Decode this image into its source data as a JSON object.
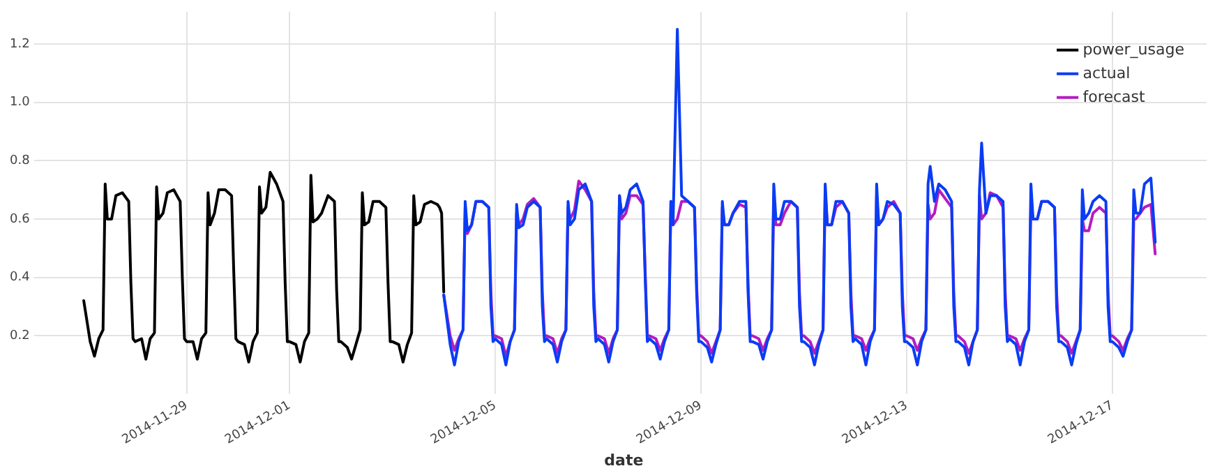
{
  "chart_data": {
    "type": "line",
    "xlabel": "date",
    "legend": "top right",
    "grid": true,
    "line_style": "solid",
    "marker": "none",
    "xlim": [
      "2014-11-26T04:00",
      "2014-12-18T20:00"
    ],
    "xticks": [
      "2014-11-29",
      "2014-12-01",
      "2014-12-05",
      "2014-12-09",
      "2014-12-13",
      "2014-12-17"
    ],
    "ylim": [
      0.02,
      1.31
    ],
    "yticks": [
      0.2,
      0.4,
      0.6,
      0.8,
      {
        "value": 1,
        "label": "1.0"
      },
      1.2
    ],
    "x": [
      "2014-12-04T00:00",
      "2014-12-04T03:00",
      "2014-12-04T05:00",
      "2014-12-04T07:00",
      "2014-12-04T09:00",
      "2014-12-04T10:00",
      "2014-12-04T11:00",
      "2014-12-04T13:00",
      "2014-12-04T15:00",
      "2014-12-04T18:00",
      "2014-12-04T21:00",
      "2014-12-04T22:00",
      "2014-12-04T23:00",
      "2014-12-05T00:00",
      "2014-12-05T03:00",
      "2014-12-05T05:00",
      "2014-12-05T07:00",
      "2014-12-05T09:00",
      "2014-12-05T10:00",
      "2014-12-05T11:00",
      "2014-12-05T13:00",
      "2014-12-05T15:00",
      "2014-12-05T18:00",
      "2014-12-05T21:00",
      "2014-12-05T22:00",
      "2014-12-05T23:00",
      "2014-12-06T00:00",
      "2014-12-06T03:00",
      "2014-12-06T05:00",
      "2014-12-06T07:00",
      "2014-12-06T09:00",
      "2014-12-06T10:00",
      "2014-12-06T11:00",
      "2014-12-06T13:00",
      "2014-12-06T15:00",
      "2014-12-06T18:00",
      "2014-12-06T21:00",
      "2014-12-06T22:00",
      "2014-12-06T23:00",
      "2014-12-07T00:00",
      "2014-12-07T03:00",
      "2014-12-07T05:00",
      "2014-12-07T07:00",
      "2014-12-07T09:00",
      "2014-12-07T10:00",
      "2014-12-07T11:00",
      "2014-12-07T13:00",
      "2014-12-07T15:00",
      "2014-12-07T18:00",
      "2014-12-07T21:00",
      "2014-12-07T22:00",
      "2014-12-07T23:00",
      "2014-12-08T00:00",
      "2014-12-08T03:00",
      "2014-12-08T05:00",
      "2014-12-08T07:00",
      "2014-12-08T09:00",
      "2014-12-08T10:00",
      "2014-12-08T11:00",
      "2014-12-08T13:00",
      "2014-12-08T15:00",
      "2014-12-08T18:00",
      "2014-12-08T21:00",
      "2014-12-08T22:00",
      "2014-12-08T23:00",
      "2014-12-09T00:00",
      "2014-12-09T03:00",
      "2014-12-09T05:00",
      "2014-12-09T07:00",
      "2014-12-09T09:00",
      "2014-12-09T10:00",
      "2014-12-09T11:00",
      "2014-12-09T13:00",
      "2014-12-09T15:00",
      "2014-12-09T18:00",
      "2014-12-09T21:00",
      "2014-12-09T22:00",
      "2014-12-09T23:00",
      "2014-12-10T00:00",
      "2014-12-10T03:00",
      "2014-12-10T05:00",
      "2014-12-10T07:00",
      "2014-12-10T09:00",
      "2014-12-10T10:00",
      "2014-12-10T11:00",
      "2014-12-10T13:00",
      "2014-12-10T15:00",
      "2014-12-10T18:00",
      "2014-12-10T21:00",
      "2014-12-10T22:00",
      "2014-12-10T23:00",
      "2014-12-11T00:00",
      "2014-12-11T03:00",
      "2014-12-11T05:00",
      "2014-12-11T07:00",
      "2014-12-11T09:00",
      "2014-12-11T10:00",
      "2014-12-11T11:00",
      "2014-12-11T13:00",
      "2014-12-11T15:00",
      "2014-12-11T18:00",
      "2014-12-11T21:00",
      "2014-12-11T22:00",
      "2014-12-11T23:00",
      "2014-12-12T00:00",
      "2014-12-12T03:00",
      "2014-12-12T05:00",
      "2014-12-12T07:00",
      "2014-12-12T09:00",
      "2014-12-12T10:00",
      "2014-12-12T11:00",
      "2014-12-12T13:00",
      "2014-12-12T15:00",
      "2014-12-12T18:00",
      "2014-12-12T21:00",
      "2014-12-12T22:00",
      "2014-12-12T23:00",
      "2014-12-13T00:00",
      "2014-12-13T03:00",
      "2014-12-13T05:00",
      "2014-12-13T07:00",
      "2014-12-13T09:00",
      "2014-12-13T10:00",
      "2014-12-13T11:00",
      "2014-12-13T13:00",
      "2014-12-13T15:00",
      "2014-12-13T18:00",
      "2014-12-13T21:00",
      "2014-12-13T22:00",
      "2014-12-13T23:00",
      "2014-12-14T00:00",
      "2014-12-14T03:00",
      "2014-12-14T05:00",
      "2014-12-14T07:00",
      "2014-12-14T09:00",
      "2014-12-14T10:00",
      "2014-12-14T11:00",
      "2014-12-14T13:00",
      "2014-12-14T15:00",
      "2014-12-14T18:00",
      "2014-12-14T21:00",
      "2014-12-14T22:00",
      "2014-12-14T23:00",
      "2014-12-15T00:00",
      "2014-12-15T03:00",
      "2014-12-15T05:00",
      "2014-12-15T07:00",
      "2014-12-15T09:00",
      "2014-12-15T10:00",
      "2014-12-15T11:00",
      "2014-12-15T13:00",
      "2014-12-15T15:00",
      "2014-12-15T18:00",
      "2014-12-15T21:00",
      "2014-12-15T22:00",
      "2014-12-15T23:00",
      "2014-12-16T00:00",
      "2014-12-16T03:00",
      "2014-12-16T05:00",
      "2014-12-16T07:00",
      "2014-12-16T09:00",
      "2014-12-16T10:00",
      "2014-12-16T11:00",
      "2014-12-16T13:00",
      "2014-12-16T15:00",
      "2014-12-16T18:00",
      "2014-12-16T21:00",
      "2014-12-16T22:00",
      "2014-12-16T23:00",
      "2014-12-17T00:00",
      "2014-12-17T03:00",
      "2014-12-17T05:00",
      "2014-12-17T07:00",
      "2014-12-17T09:00",
      "2014-12-17T10:00",
      "2014-12-17T11:00",
      "2014-12-17T13:00",
      "2014-12-17T15:00",
      "2014-12-17T18:00",
      "2014-12-17T20:00"
    ],
    "series": [
      {
        "name": "power_usage",
        "color": "#000000",
        "x": [
          "2014-11-27T00:00",
          "2014-11-27T03:00",
          "2014-11-27T05:00",
          "2014-11-27T07:00",
          "2014-11-27T09:00",
          "2014-11-27T10:00",
          "2014-11-27T11:00",
          "2014-11-27T13:00",
          "2014-11-27T15:00",
          "2014-11-27T18:00",
          "2014-11-27T21:00",
          "2014-11-27T22:00",
          "2014-11-27T23:00",
          "2014-11-28T00:00",
          "2014-11-28T03:00",
          "2014-11-28T05:00",
          "2014-11-28T07:00",
          "2014-11-28T09:00",
          "2014-11-28T10:00",
          "2014-11-28T11:00",
          "2014-11-28T13:00",
          "2014-11-28T15:00",
          "2014-11-28T18:00",
          "2014-11-28T21:00",
          "2014-11-28T22:00",
          "2014-11-28T23:00",
          "2014-11-29T00:00",
          "2014-11-29T03:00",
          "2014-11-29T05:00",
          "2014-11-29T07:00",
          "2014-11-29T09:00",
          "2014-11-29T10:00",
          "2014-11-29T11:00",
          "2014-11-29T13:00",
          "2014-11-29T15:00",
          "2014-11-29T18:00",
          "2014-11-29T21:00",
          "2014-11-29T22:00",
          "2014-11-29T23:00",
          "2014-11-30T00:00",
          "2014-11-30T03:00",
          "2014-11-30T05:00",
          "2014-11-30T07:00",
          "2014-11-30T09:00",
          "2014-11-30T10:00",
          "2014-11-30T11:00",
          "2014-11-30T13:00",
          "2014-11-30T15:00",
          "2014-11-30T18:00",
          "2014-11-30T21:00",
          "2014-11-30T22:00",
          "2014-11-30T23:00",
          "2014-12-01T00:00",
          "2014-12-01T03:00",
          "2014-12-01T05:00",
          "2014-12-01T07:00",
          "2014-12-01T09:00",
          "2014-12-01T10:00",
          "2014-12-01T11:00",
          "2014-12-01T13:00",
          "2014-12-01T15:00",
          "2014-12-01T18:00",
          "2014-12-01T21:00",
          "2014-12-01T22:00",
          "2014-12-01T23:00",
          "2014-12-02T00:00",
          "2014-12-02T03:00",
          "2014-12-02T05:00",
          "2014-12-02T07:00",
          "2014-12-02T09:00",
          "2014-12-02T10:00",
          "2014-12-02T11:00",
          "2014-12-02T13:00",
          "2014-12-02T15:00",
          "2014-12-02T18:00",
          "2014-12-02T21:00",
          "2014-12-02T22:00",
          "2014-12-02T23:00",
          "2014-12-03T00:00",
          "2014-12-03T03:00",
          "2014-12-03T05:00",
          "2014-12-03T07:00",
          "2014-12-03T09:00",
          "2014-12-03T10:00",
          "2014-12-03T11:00",
          "2014-12-03T13:00",
          "2014-12-03T15:00",
          "2014-12-03T18:00",
          "2014-12-03T21:00",
          "2014-12-03T22:00",
          "2014-12-03T23:00",
          "2014-12-04T00:00"
        ],
        "values": [
          0.32,
          0.18,
          0.13,
          0.19,
          0.22,
          0.72,
          0.6,
          0.6,
          0.68,
          0.69,
          0.66,
          0.38,
          0.19,
          0.18,
          0.19,
          0.12,
          0.19,
          0.21,
          0.71,
          0.6,
          0.62,
          0.69,
          0.7,
          0.66,
          0.4,
          0.19,
          0.18,
          0.18,
          0.12,
          0.19,
          0.21,
          0.69,
          0.58,
          0.62,
          0.7,
          0.7,
          0.68,
          0.42,
          0.19,
          0.18,
          0.17,
          0.11,
          0.18,
          0.21,
          0.71,
          0.62,
          0.64,
          0.76,
          0.72,
          0.66,
          0.38,
          0.18,
          0.18,
          0.17,
          0.11,
          0.18,
          0.21,
          0.75,
          0.59,
          0.6,
          0.62,
          0.68,
          0.66,
          0.36,
          0.18,
          0.18,
          0.16,
          0.12,
          0.17,
          0.22,
          0.69,
          0.58,
          0.59,
          0.66,
          0.66,
          0.64,
          0.38,
          0.18,
          0.18,
          0.17,
          0.11,
          0.17,
          0.21,
          0.68,
          0.58,
          0.59,
          0.65,
          0.66,
          0.65,
          0.64,
          0.62,
          0.35
        ]
      },
      {
        "name": "actual",
        "color": "#0a3cf5",
        "values": [
          0.34,
          0.17,
          0.1,
          0.18,
          0.22,
          0.66,
          0.56,
          0.58,
          0.66,
          0.66,
          0.64,
          0.3,
          0.18,
          0.19,
          0.17,
          0.1,
          0.18,
          0.22,
          0.65,
          0.57,
          0.58,
          0.64,
          0.66,
          0.64,
          0.3,
          0.18,
          0.19,
          0.17,
          0.11,
          0.18,
          0.22,
          0.66,
          0.58,
          0.6,
          0.7,
          0.72,
          0.66,
          0.3,
          0.18,
          0.19,
          0.17,
          0.11,
          0.18,
          0.22,
          0.68,
          0.62,
          0.64,
          0.7,
          0.72,
          0.66,
          0.4,
          0.18,
          0.19,
          0.17,
          0.12,
          0.18,
          0.22,
          0.66,
          0.58,
          1.25,
          0.68,
          0.66,
          0.64,
          0.35,
          0.18,
          0.18,
          0.16,
          0.11,
          0.17,
          0.22,
          0.66,
          0.58,
          0.58,
          0.62,
          0.66,
          0.66,
          0.35,
          0.18,
          0.18,
          0.17,
          0.12,
          0.18,
          0.22,
          0.72,
          0.6,
          0.6,
          0.66,
          0.66,
          0.64,
          0.3,
          0.18,
          0.18,
          0.16,
          0.1,
          0.17,
          0.22,
          0.72,
          0.58,
          0.58,
          0.66,
          0.66,
          0.62,
          0.3,
          0.18,
          0.19,
          0.17,
          0.1,
          0.18,
          0.22,
          0.72,
          0.58,
          0.6,
          0.66,
          0.65,
          0.62,
          0.3,
          0.18,
          0.18,
          0.16,
          0.1,
          0.18,
          0.22,
          0.72,
          0.78,
          0.66,
          0.72,
          0.7,
          0.66,
          0.3,
          0.18,
          0.18,
          0.16,
          0.1,
          0.18,
          0.22,
          0.7,
          0.86,
          0.62,
          0.68,
          0.68,
          0.66,
          0.3,
          0.18,
          0.19,
          0.17,
          0.1,
          0.18,
          0.22,
          0.72,
          0.6,
          0.6,
          0.66,
          0.66,
          0.64,
          0.3,
          0.18,
          0.18,
          0.16,
          0.1,
          0.17,
          0.22,
          0.7,
          0.6,
          0.62,
          0.66,
          0.68,
          0.66,
          0.3,
          0.18,
          0.18,
          0.16,
          0.13,
          0.18,
          0.22,
          0.7,
          0.62,
          0.62,
          0.72,
          0.74,
          0.52
        ]
      },
      {
        "name": "forecast",
        "color": "#b41cc0",
        "values": [
          0.34,
          0.2,
          0.15,
          0.19,
          0.22,
          0.64,
          0.55,
          0.58,
          0.66,
          0.66,
          0.64,
          0.35,
          0.2,
          0.2,
          0.19,
          0.13,
          0.18,
          0.22,
          0.62,
          0.58,
          0.6,
          0.65,
          0.67,
          0.64,
          0.35,
          0.2,
          0.2,
          0.19,
          0.14,
          0.19,
          0.22,
          0.64,
          0.6,
          0.63,
          0.73,
          0.7,
          0.66,
          0.35,
          0.2,
          0.2,
          0.19,
          0.14,
          0.19,
          0.22,
          0.68,
          0.6,
          0.62,
          0.68,
          0.68,
          0.65,
          0.42,
          0.2,
          0.2,
          0.19,
          0.15,
          0.19,
          0.22,
          0.66,
          0.58,
          0.6,
          0.66,
          0.66,
          0.64,
          0.38,
          0.2,
          0.2,
          0.18,
          0.14,
          0.18,
          0.22,
          0.64,
          0.58,
          0.58,
          0.62,
          0.65,
          0.64,
          0.38,
          0.2,
          0.2,
          0.19,
          0.15,
          0.19,
          0.22,
          0.68,
          0.58,
          0.58,
          0.62,
          0.66,
          0.64,
          0.35,
          0.2,
          0.2,
          0.18,
          0.14,
          0.18,
          0.22,
          0.7,
          0.58,
          0.58,
          0.64,
          0.66,
          0.62,
          0.35,
          0.2,
          0.2,
          0.19,
          0.15,
          0.19,
          0.22,
          0.68,
          0.58,
          0.6,
          0.64,
          0.66,
          0.62,
          0.35,
          0.2,
          0.2,
          0.19,
          0.15,
          0.19,
          0.22,
          0.65,
          0.6,
          0.62,
          0.7,
          0.67,
          0.64,
          0.35,
          0.2,
          0.2,
          0.18,
          0.14,
          0.18,
          0.22,
          0.68,
          0.6,
          0.62,
          0.69,
          0.68,
          0.64,
          0.35,
          0.2,
          0.2,
          0.19,
          0.15,
          0.19,
          0.22,
          0.65,
          0.6,
          0.6,
          0.66,
          0.66,
          0.64,
          0.35,
          0.2,
          0.2,
          0.18,
          0.14,
          0.18,
          0.22,
          0.6,
          0.56,
          0.56,
          0.62,
          0.64,
          0.62,
          0.35,
          0.2,
          0.2,
          0.18,
          0.15,
          0.19,
          0.22,
          0.6,
          0.6,
          0.62,
          0.64,
          0.65,
          0.48
        ]
      }
    ]
  }
}
